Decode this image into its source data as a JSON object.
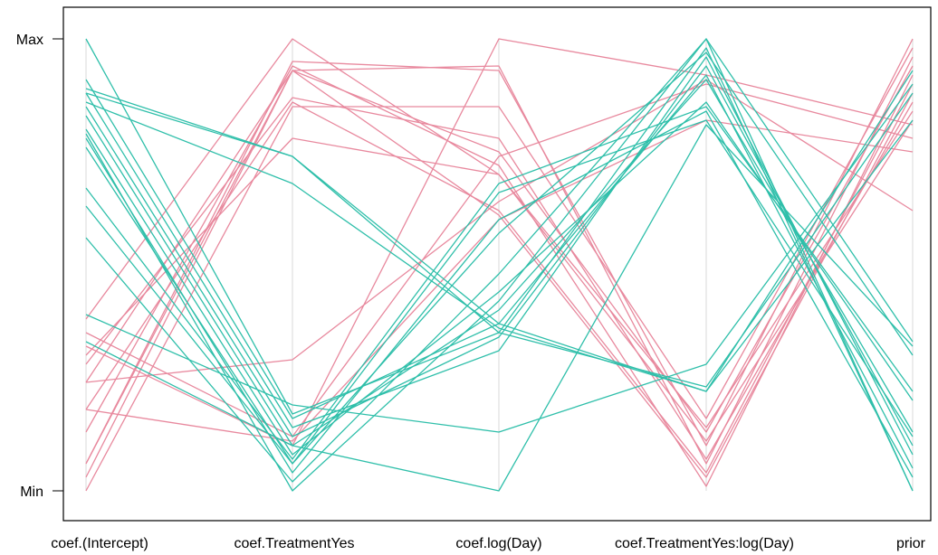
{
  "colors": {
    "pink": "#E8899E",
    "teal": "#2FBFAA",
    "axis_line": "#D9D9D9",
    "frame": "#000000"
  },
  "chart_data": {
    "type": "parallel_coordinates",
    "title": "",
    "xlabel": "",
    "ylabel": "",
    "grid": false,
    "legend": "none",
    "axes": [
      "coef.(Intercept)",
      "coef.TreatmentYes",
      "coef.log(Day)",
      "coef.TreatmentYes:log(Day)",
      "prior"
    ],
    "y_ticks": [
      "Min",
      "Max"
    ],
    "ylim": [
      0,
      1
    ],
    "series": [
      {
        "color": "pink",
        "lines": [
          [
            0.0,
            0.85,
            0.85,
            0.16,
            0.98
          ],
          [
            0.03,
            0.93,
            0.94,
            0.06,
            0.96
          ],
          [
            0.06,
            0.93,
            0.75,
            0.13,
            0.94
          ],
          [
            0.13,
            0.94,
            0.72,
            0.01,
            0.92
          ],
          [
            0.18,
            0.86,
            0.62,
            0.04,
            0.9
          ],
          [
            0.24,
            0.93,
            0.61,
            0.03,
            0.88
          ],
          [
            0.28,
            0.87,
            0.78,
            0.07,
            0.86
          ],
          [
            0.3,
            0.78,
            0.7,
            0.14,
            0.84
          ],
          [
            0.24,
            0.29,
            0.64,
            0.91,
            0.62
          ],
          [
            0.35,
            0.12,
            0.74,
            0.9,
            0.78
          ],
          [
            0.18,
            0.11,
            0.6,
            0.82,
            0.75
          ],
          [
            0.32,
            0.1,
            1.0,
            0.92,
            0.81
          ],
          [
            0.38,
            1.0,
            0.7,
            0.11,
            0.82
          ],
          [
            0.06,
            0.95,
            0.93,
            0.1,
            1.0
          ]
        ]
      },
      {
        "color": "teal",
        "lines": [
          [
            1.0,
            0.17,
            0.35,
            0.98,
            0.0
          ],
          [
            0.91,
            0.16,
            0.37,
            0.92,
            0.05
          ],
          [
            0.88,
            0.14,
            0.31,
            0.96,
            0.08
          ],
          [
            0.85,
            0.12,
            0.34,
            0.94,
            0.1
          ],
          [
            0.83,
            0.1,
            0.4,
            0.91,
            0.13
          ],
          [
            0.8,
            0.08,
            0.44,
            0.86,
            0.2
          ],
          [
            0.79,
            0.0,
            0.42,
            1.0,
            0.0
          ],
          [
            0.78,
            0.04,
            0.6,
            0.84,
            0.03
          ],
          [
            0.76,
            0.06,
            0.66,
            0.82,
            0.12
          ],
          [
            0.67,
            0.07,
            0.68,
            0.85,
            0.22
          ],
          [
            0.63,
            0.06,
            0.57,
            0.97,
            0.3
          ],
          [
            0.56,
            0.02,
            0.48,
            1.0,
            0.33
          ],
          [
            0.89,
            0.74,
            0.37,
            0.22,
            0.82
          ],
          [
            0.88,
            0.74,
            0.35,
            0.23,
            0.88
          ],
          [
            0.86,
            0.68,
            0.36,
            0.22,
            0.93
          ],
          [
            0.39,
            0.19,
            0.13,
            0.28,
            0.9
          ],
          [
            0.33,
            0.1,
            0.0,
            0.81,
            0.32
          ]
        ]
      }
    ]
  }
}
